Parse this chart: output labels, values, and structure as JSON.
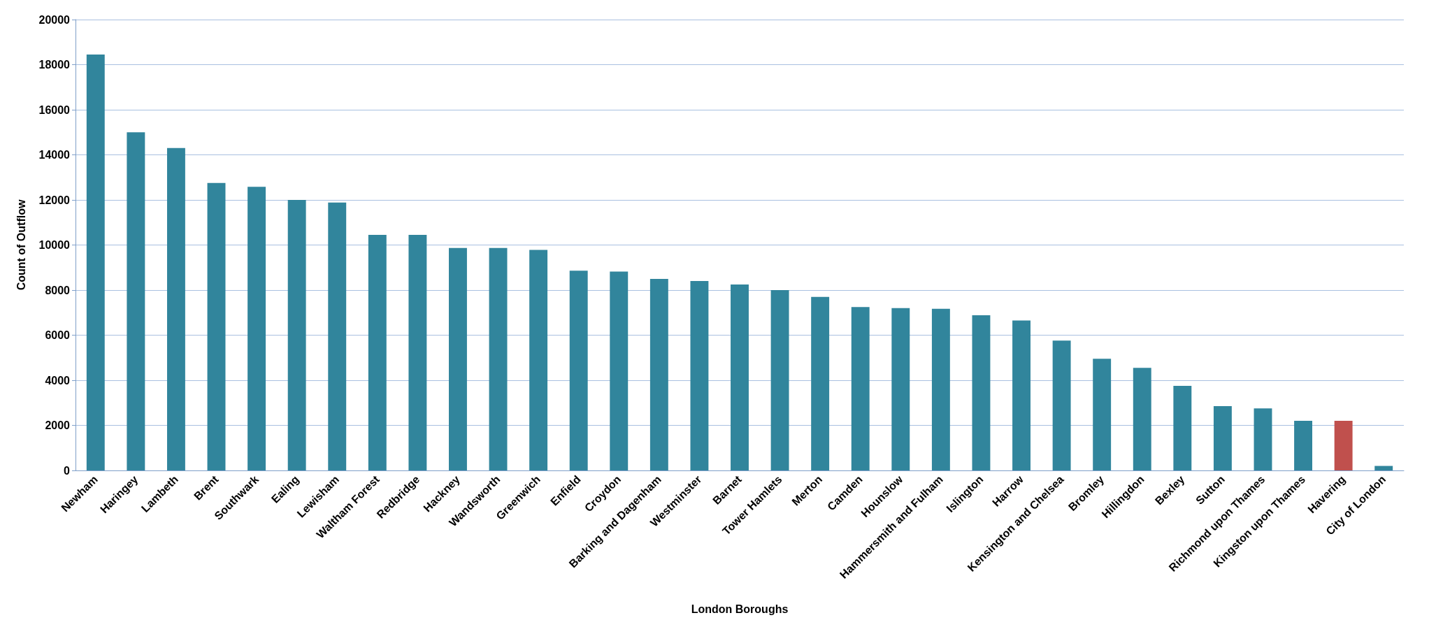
{
  "chart_data": {
    "type": "bar",
    "xlabel": "London Boroughs",
    "ylabel": "Count of Outflow",
    "categories": [
      "Newham",
      "Haringey",
      "Lambeth",
      "Brent",
      "Southwark",
      "Ealing",
      "Lewisham",
      "Waltham Forest",
      "Redbridge",
      "Hackney",
      "Wandsworth",
      "Greenwich",
      "Enfield",
      "Croydon",
      "Barking and Dagenham",
      "Westminster",
      "Barnet",
      "Tower Hamlets",
      "Merton",
      "Camden",
      "Hounslow",
      "Hammersmith and Fulham",
      "Islington",
      "Harrow",
      "Kensington and Chelsea",
      "Bromley",
      "Hillingdon",
      "Bexley",
      "Sutton",
      "Richmond upon Thames",
      "Kingston upon Thames",
      "Havering",
      "City of London"
    ],
    "values": [
      18450,
      15000,
      14300,
      12750,
      12580,
      12000,
      11880,
      10450,
      10450,
      9870,
      9870,
      9780,
      8860,
      8820,
      8500,
      8400,
      8250,
      8000,
      7700,
      7250,
      7200,
      7170,
      6880,
      6650,
      5760,
      4950,
      4550,
      3750,
      2850,
      2750,
      2200,
      2200,
      200
    ],
    "colors": [
      "#31859c",
      "#31859c",
      "#31859c",
      "#31859c",
      "#31859c",
      "#31859c",
      "#31859c",
      "#31859c",
      "#31859c",
      "#31859c",
      "#31859c",
      "#31859c",
      "#31859c",
      "#31859c",
      "#31859c",
      "#31859c",
      "#31859c",
      "#31859c",
      "#31859c",
      "#31859c",
      "#31859c",
      "#31859c",
      "#31859c",
      "#31859c",
      "#31859c",
      "#31859c",
      "#31859c",
      "#31859c",
      "#31859c",
      "#31859c",
      "#31859c",
      "#c0504d",
      "#31859c"
    ],
    "ylim": [
      0,
      20000
    ],
    "yticks": [
      0,
      2000,
      4000,
      6000,
      8000,
      10000,
      12000,
      14000,
      16000,
      18000,
      20000
    ],
    "grid": "y"
  }
}
